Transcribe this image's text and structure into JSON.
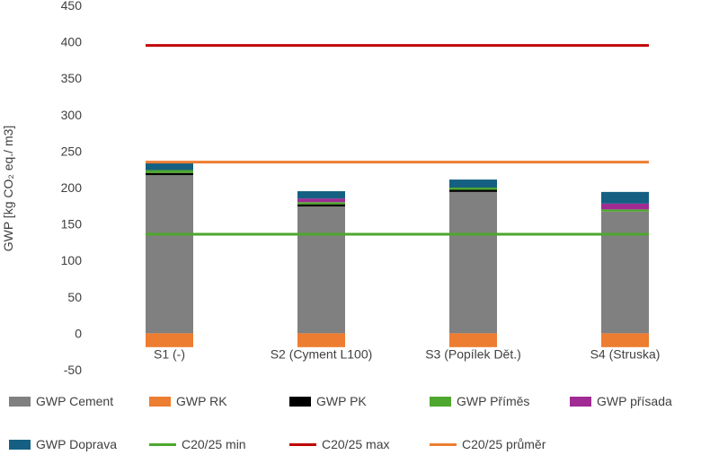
{
  "chart_data": {
    "type": "bar",
    "stacked": true,
    "ylabel": "GWP [kg CO₂ eq./ m3]",
    "ylim": [
      -50,
      450
    ],
    "yticks": [
      -50,
      0,
      50,
      100,
      150,
      200,
      250,
      300,
      350,
      400,
      450
    ],
    "grid": false,
    "legend_position": "bottom",
    "categories": [
      "S1 (-)",
      "S2 (Cyment L100)",
      "S3 (Popílek Dět.)",
      "S4 (Struska)"
    ],
    "series": [
      {
        "name": "GWP Cement",
        "kind": "bar",
        "color": "#808080",
        "values": [
          217,
          174,
          194,
          167
        ]
      },
      {
        "name": "GWP RK",
        "kind": "bar",
        "color": "#ED7D31",
        "values": [
          -19,
          -19,
          -19,
          -19
        ]
      },
      {
        "name": "GWP PK",
        "kind": "bar",
        "color": "#000000",
        "values": [
          3,
          3,
          3,
          0
        ]
      },
      {
        "name": "GWP Příměs",
        "kind": "bar",
        "color": "#4EA72E",
        "values": [
          4,
          3,
          3,
          3
        ]
      },
      {
        "name": "GWP přísada",
        "kind": "bar",
        "color": "#A02B93",
        "values": [
          0,
          5,
          0,
          8
        ]
      },
      {
        "name": "GWP Doprava",
        "kind": "bar",
        "color": "#156082",
        "values": [
          10,
          10,
          11,
          16
        ]
      },
      {
        "name": "C20/25 min",
        "kind": "line",
        "color": "#4EA72E",
        "value": 136
      },
      {
        "name": "C20/25 max",
        "kind": "line",
        "color": "#C00000",
        "value": 395
      },
      {
        "name": "C20/25 průměr",
        "kind": "line",
        "color": "#ED7D31",
        "value": 235
      }
    ]
  }
}
